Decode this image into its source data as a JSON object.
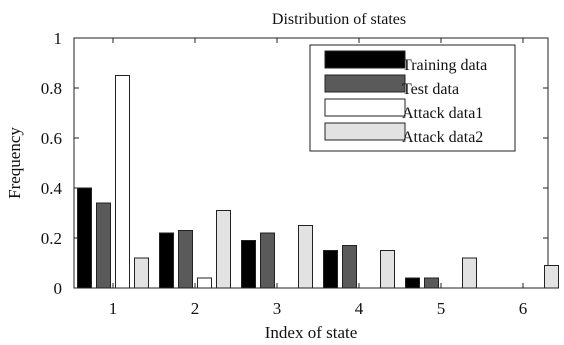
{
  "chart_data": {
    "type": "bar",
    "title": "Distribution of states",
    "xlabel": "Index of state",
    "ylabel": "Frequency",
    "categories": [
      "1",
      "2",
      "3",
      "4",
      "5",
      "6"
    ],
    "ylim": [
      0,
      1
    ],
    "yticks": [
      "0",
      "0.2",
      "0.4",
      "0.6",
      "0.8",
      "1"
    ],
    "grid": false,
    "legend_position": "top-right",
    "series": [
      {
        "name": "Training data",
        "color": "#000000",
        "values": [
          0.4,
          0.22,
          0.19,
          0.15,
          0.04,
          0.0
        ]
      },
      {
        "name": "Test data",
        "color": "#5a5a5a",
        "values": [
          0.34,
          0.23,
          0.22,
          0.17,
          0.04,
          0.0
        ]
      },
      {
        "name": "Attack data1",
        "color": "#ffffff",
        "values": [
          0.85,
          0.04,
          0.0,
          0.0,
          0.0,
          0.0
        ]
      },
      {
        "name": "Attack data2",
        "color": "#e2e2e2",
        "values": [
          0.12,
          0.31,
          0.25,
          0.15,
          0.12,
          0.09
        ]
      }
    ]
  }
}
